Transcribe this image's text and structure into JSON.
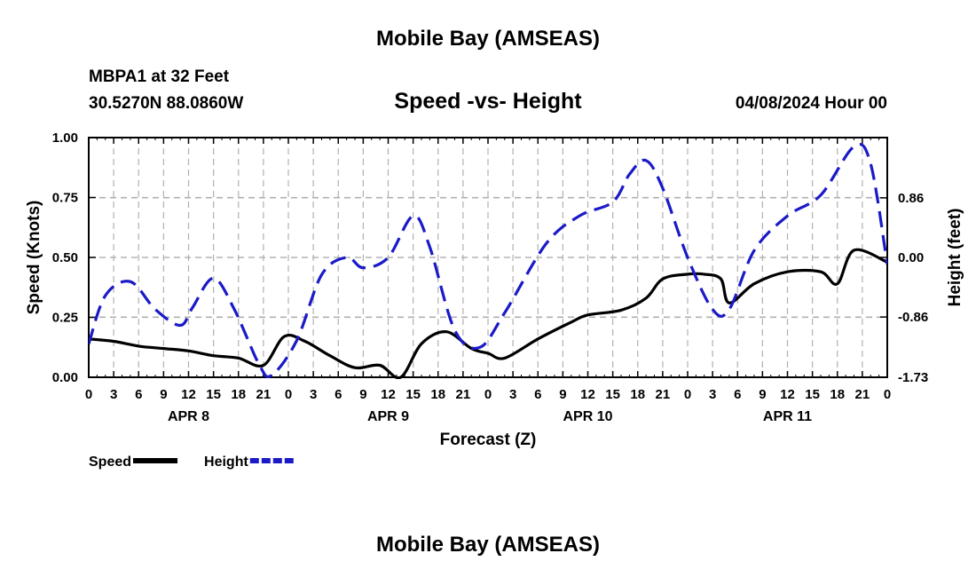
{
  "header": {
    "title": "Mobile Bay (AMSEAS)",
    "station": "MBPA1 at 32 Feet",
    "coords": "30.5270N  88.0860W",
    "subtitle": "Speed -vs- Height",
    "datetime": "04/08/2024 Hour 00"
  },
  "footer": {
    "title": "Mobile Bay (AMSEAS)"
  },
  "colors": {
    "speed": "#000000",
    "height": "#1a1ac8",
    "grid": "#b0b0b0"
  },
  "chart_data": {
    "type": "line",
    "xlabel": "Forecast (Z)",
    "ylabel_left": "Speed (Knots)",
    "ylabel_right": "Height (feet)",
    "x_range_hours": [
      0,
      96
    ],
    "x_tick_labels": [
      "0",
      "3",
      "6",
      "9",
      "12",
      "15",
      "18",
      "21",
      "0",
      "3",
      "6",
      "9",
      "12",
      "15",
      "18",
      "21",
      "0",
      "3",
      "6",
      "9",
      "12",
      "15",
      "18",
      "21",
      "0",
      "3",
      "6",
      "9",
      "12",
      "15",
      "18",
      "21",
      "0"
    ],
    "day_labels": [
      {
        "label": "APR 8",
        "hour": 12
      },
      {
        "label": "APR 9",
        "hour": 36
      },
      {
        "label": "APR 10",
        "hour": 60
      },
      {
        "label": "APR 11",
        "hour": 84
      }
    ],
    "left_axis": {
      "ylim": [
        0,
        1.0
      ],
      "ticks": [
        "0.00",
        "0.25",
        "0.50",
        "0.75",
        "1.00"
      ]
    },
    "right_axis": {
      "ylim": [
        -1.73,
        1.73
      ],
      "ticks": [
        "-1.73",
        "-0.86",
        "0.00",
        "0.86"
      ]
    },
    "grid": true,
    "legend": {
      "placement": "bottom-left"
    },
    "series": [
      {
        "name": "Speed",
        "axis": "left",
        "style": "solid",
        "points": [
          [
            0,
            0.16
          ],
          [
            3,
            0.15
          ],
          [
            6,
            0.13
          ],
          [
            9,
            0.12
          ],
          [
            12,
            0.11
          ],
          [
            15,
            0.09
          ],
          [
            18,
            0.08
          ],
          [
            21,
            0.05
          ],
          [
            23.5,
            0.17
          ],
          [
            26,
            0.15
          ],
          [
            29,
            0.09
          ],
          [
            32,
            0.04
          ],
          [
            35,
            0.05
          ],
          [
            37.5,
            0.0
          ],
          [
            40,
            0.14
          ],
          [
            43,
            0.19
          ],
          [
            46,
            0.12
          ],
          [
            48,
            0.1
          ],
          [
            50,
            0.08
          ],
          [
            54,
            0.16
          ],
          [
            58,
            0.23
          ],
          [
            60,
            0.26
          ],
          [
            64,
            0.28
          ],
          [
            67,
            0.33
          ],
          [
            69,
            0.41
          ],
          [
            72,
            0.43
          ],
          [
            74,
            0.43
          ],
          [
            76,
            0.41
          ],
          [
            77,
            0.31
          ],
          [
            80,
            0.39
          ],
          [
            84,
            0.44
          ],
          [
            88,
            0.44
          ],
          [
            90,
            0.39
          ],
          [
            92,
            0.53
          ],
          [
            96,
            0.48
          ]
        ]
      },
      {
        "name": "Height",
        "axis": "right",
        "style": "dashed",
        "points": [
          [
            0,
            -1.25
          ],
          [
            2,
            -0.55
          ],
          [
            5,
            -0.35
          ],
          [
            8,
            -0.75
          ],
          [
            11,
            -0.98
          ],
          [
            12.5,
            -0.72
          ],
          [
            15,
            -0.3
          ],
          [
            17.5,
            -0.75
          ],
          [
            20.5,
            -1.55
          ],
          [
            22,
            -1.7
          ],
          [
            25,
            -1.2
          ],
          [
            28,
            -0.25
          ],
          [
            31,
            0.0
          ],
          [
            33,
            -0.15
          ],
          [
            36,
            0.0
          ],
          [
            39,
            0.6
          ],
          [
            41,
            0.15
          ],
          [
            44,
            -1.05
          ],
          [
            47,
            -1.3
          ],
          [
            50,
            -0.8
          ],
          [
            55,
            0.2
          ],
          [
            59,
            0.6
          ],
          [
            63,
            0.8
          ],
          [
            65,
            1.2
          ],
          [
            67,
            1.4
          ],
          [
            69,
            1.0
          ],
          [
            72,
            0.0
          ],
          [
            75,
            -0.75
          ],
          [
            77,
            -0.75
          ],
          [
            80,
            0.1
          ],
          [
            84,
            0.6
          ],
          [
            88,
            0.9
          ],
          [
            92,
            1.6
          ],
          [
            94,
            1.35
          ],
          [
            96,
            -0.1
          ]
        ]
      }
    ]
  }
}
